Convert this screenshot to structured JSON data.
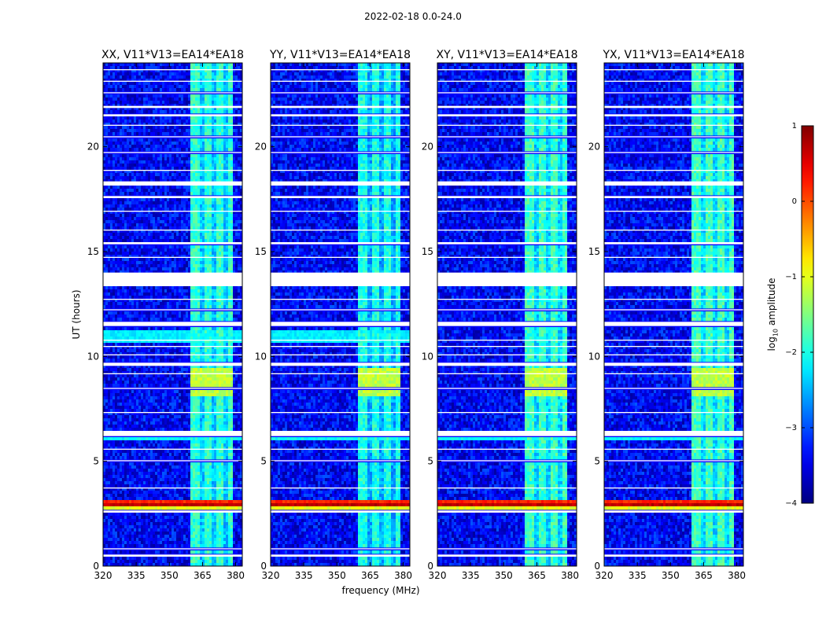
{
  "figure": {
    "suptitle": "2022-02-18 0.0-24.0",
    "colorbar_label_prefix": "log",
    "colorbar_label_sub": "10",
    "colorbar_label_suffix": " amplitude"
  },
  "chart_data": {
    "type": "heatmap",
    "colormap": "jet",
    "panels": [
      {
        "title": "XX, V11*V13=EA14*EA18",
        "strength": 0.95
      },
      {
        "title": "YY, V11*V13=EA14*EA18",
        "strength": 1.0
      },
      {
        "title": "XY, V11*V13=EA14*EA18",
        "strength": 0.92
      },
      {
        "title": "YX, V11*V13=EA14*EA18",
        "strength": 0.9
      }
    ],
    "xlabel": "frequency (MHz)",
    "ylabel": "UT (hours)",
    "xlim": [
      320,
      383
    ],
    "ylim": [
      0,
      24
    ],
    "x_ticks": [
      320,
      335,
      350,
      365,
      380
    ],
    "y_ticks": [
      0,
      5,
      10,
      15,
      20
    ],
    "colorbar": {
      "min": -4,
      "max": 1,
      "ticks": [
        1,
        0,
        -1,
        -2,
        -3,
        -4
      ],
      "tick_labels": [
        "1",
        "0",
        "−1",
        "−2",
        "−3",
        "−4"
      ]
    },
    "background_level": -3.4,
    "rfi_band_mhz": [
      360,
      379
    ],
    "rfi_band_level": -2.0,
    "rfi_channels_mhz": [
      [
        360,
        363.5
      ],
      [
        366,
        369
      ],
      [
        371.5,
        374
      ],
      [
        376.5,
        379
      ]
    ],
    "flagged_hours": [
      [
        0.45,
        0.55
      ],
      [
        0.8,
        0.85
      ],
      [
        2.55,
        2.65
      ],
      [
        3.7,
        3.75
      ],
      [
        5.0,
        5.05
      ],
      [
        5.55,
        5.6
      ],
      [
        6.2,
        6.45
      ],
      [
        7.3,
        7.35
      ],
      [
        8.45,
        8.5
      ],
      [
        9.15,
        9.2
      ],
      [
        9.55,
        9.7
      ],
      [
        10.05,
        10.1
      ],
      [
        10.45,
        10.5
      ],
      [
        10.75,
        10.8
      ],
      [
        11.45,
        11.65
      ],
      [
        12.2,
        12.25
      ],
      [
        12.7,
        12.75
      ],
      [
        13.35,
        14.0
      ],
      [
        14.7,
        14.75
      ],
      [
        15.35,
        15.45
      ],
      [
        16.0,
        16.05
      ],
      [
        16.9,
        16.95
      ],
      [
        17.55,
        17.65
      ],
      [
        18.15,
        18.35
      ],
      [
        18.85,
        18.9
      ],
      [
        19.7,
        19.75
      ],
      [
        20.45,
        20.5
      ],
      [
        21.0,
        21.05
      ],
      [
        21.45,
        21.55
      ],
      [
        21.85,
        21.95
      ],
      [
        22.55,
        22.6
      ],
      [
        23.1,
        23.15
      ],
      [
        23.65,
        23.7
      ]
    ],
    "bright_time_features": [
      {
        "hours": [
          2.85,
          3.0
        ],
        "level": 0.7,
        "scope": "all"
      },
      {
        "hours": [
          3.0,
          3.1
        ],
        "level": 0.2,
        "scope": "all"
      },
      {
        "hours": [
          2.7,
          2.78
        ],
        "level": -1.0,
        "scope": "all"
      },
      {
        "hours": [
          10.6,
          11.3
        ],
        "level": -2.2,
        "scope": "XX,YY"
      },
      {
        "hours": [
          8.1,
          9.4
        ],
        "level": -1.2,
        "scope": "rfi_band"
      },
      {
        "hours": [
          6.0,
          6.15
        ],
        "level": -2.1,
        "scope": "all"
      }
    ]
  }
}
